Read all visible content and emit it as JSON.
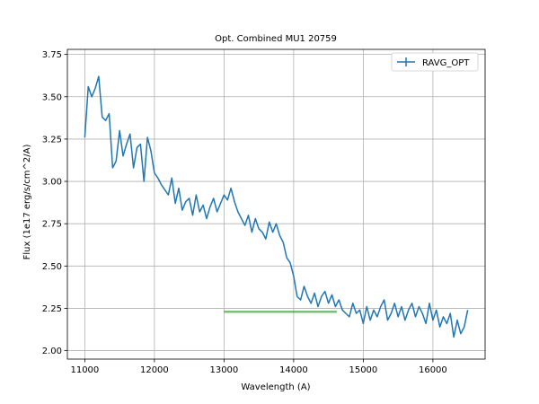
{
  "chart_data": {
    "type": "line",
    "title": "Opt. Combined MU1 20759",
    "xlabel": "Wavelength (A)",
    "ylabel": "Flux (1e17 erg/s/cm^2/A)",
    "xlim": [
      10750,
      16750
    ],
    "ylim": [
      1.95,
      3.78
    ],
    "xticks": [
      11000,
      12000,
      13000,
      14000,
      15000,
      16000
    ],
    "yticks": [
      2.0,
      2.25,
      2.5,
      2.75,
      3.0,
      3.25,
      3.5,
      3.75
    ],
    "grid": true,
    "legend": {
      "position": "top-right",
      "entries": [
        "RAVG_OPT"
      ]
    },
    "colors": {
      "series": "#1f77b4",
      "band": "#2ca02c"
    },
    "series": [
      {
        "name": "RAVG_OPT",
        "x": [
          11000,
          11050,
          11100,
          11150,
          11200,
          11250,
          11300,
          11350,
          11400,
          11450,
          11500,
          11550,
          11600,
          11650,
          11700,
          11750,
          11800,
          11850,
          11900,
          11950,
          12000,
          12050,
          12100,
          12150,
          12200,
          12250,
          12300,
          12350,
          12400,
          12450,
          12500,
          12550,
          12600,
          12650,
          12700,
          12750,
          12800,
          12850,
          12900,
          12950,
          13000,
          13050,
          13100,
          13150,
          13200,
          13250,
          13300,
          13350,
          13400,
          13450,
          13500,
          13550,
          13600,
          13650,
          13700,
          13750,
          13800,
          13850,
          13900,
          13950,
          14000,
          14050,
          14100,
          14150,
          14200,
          14250,
          14300,
          14350,
          14400,
          14450,
          14500,
          14550,
          14600,
          14650,
          14700,
          14750,
          14800,
          14850,
          14900,
          14950,
          15000,
          15050,
          15100,
          15150,
          15200,
          15250,
          15300,
          15350,
          15400,
          15450,
          15500,
          15550,
          15600,
          15650,
          15700,
          15750,
          15800,
          15850,
          15900,
          15950,
          16000,
          16050,
          16100,
          16150,
          16200,
          16250,
          16300,
          16350,
          16400,
          16450,
          16500
        ],
        "y": [
          3.26,
          3.56,
          3.5,
          3.55,
          3.62,
          3.38,
          3.36,
          3.4,
          3.08,
          3.12,
          3.3,
          3.15,
          3.22,
          3.28,
          3.08,
          3.2,
          3.22,
          3.0,
          3.26,
          3.18,
          3.05,
          3.02,
          2.98,
          2.95,
          2.92,
          3.02,
          2.87,
          2.96,
          2.83,
          2.88,
          2.9,
          2.8,
          2.92,
          2.82,
          2.86,
          2.78,
          2.85,
          2.9,
          2.82,
          2.87,
          2.92,
          2.89,
          2.96,
          2.88,
          2.82,
          2.78,
          2.74,
          2.8,
          2.7,
          2.78,
          2.72,
          2.7,
          2.66,
          2.76,
          2.7,
          2.75,
          2.68,
          2.64,
          2.55,
          2.52,
          2.44,
          2.32,
          2.3,
          2.38,
          2.32,
          2.28,
          2.34,
          2.26,
          2.32,
          2.35,
          2.28,
          2.33,
          2.26,
          2.3,
          2.24,
          2.22,
          2.2,
          2.28,
          2.22,
          2.24,
          2.16,
          2.26,
          2.18,
          2.24,
          2.2,
          2.26,
          2.3,
          2.18,
          2.22,
          2.28,
          2.2,
          2.26,
          2.18,
          2.24,
          2.28,
          2.2,
          2.26,
          2.22,
          2.16,
          2.28,
          2.18,
          2.24,
          2.14,
          2.2,
          2.16,
          2.22,
          2.08,
          2.18,
          2.1,
          2.14,
          2.24
        ]
      }
    ],
    "band": {
      "x": [
        13000,
        14620
      ],
      "y": 2.23
    }
  }
}
